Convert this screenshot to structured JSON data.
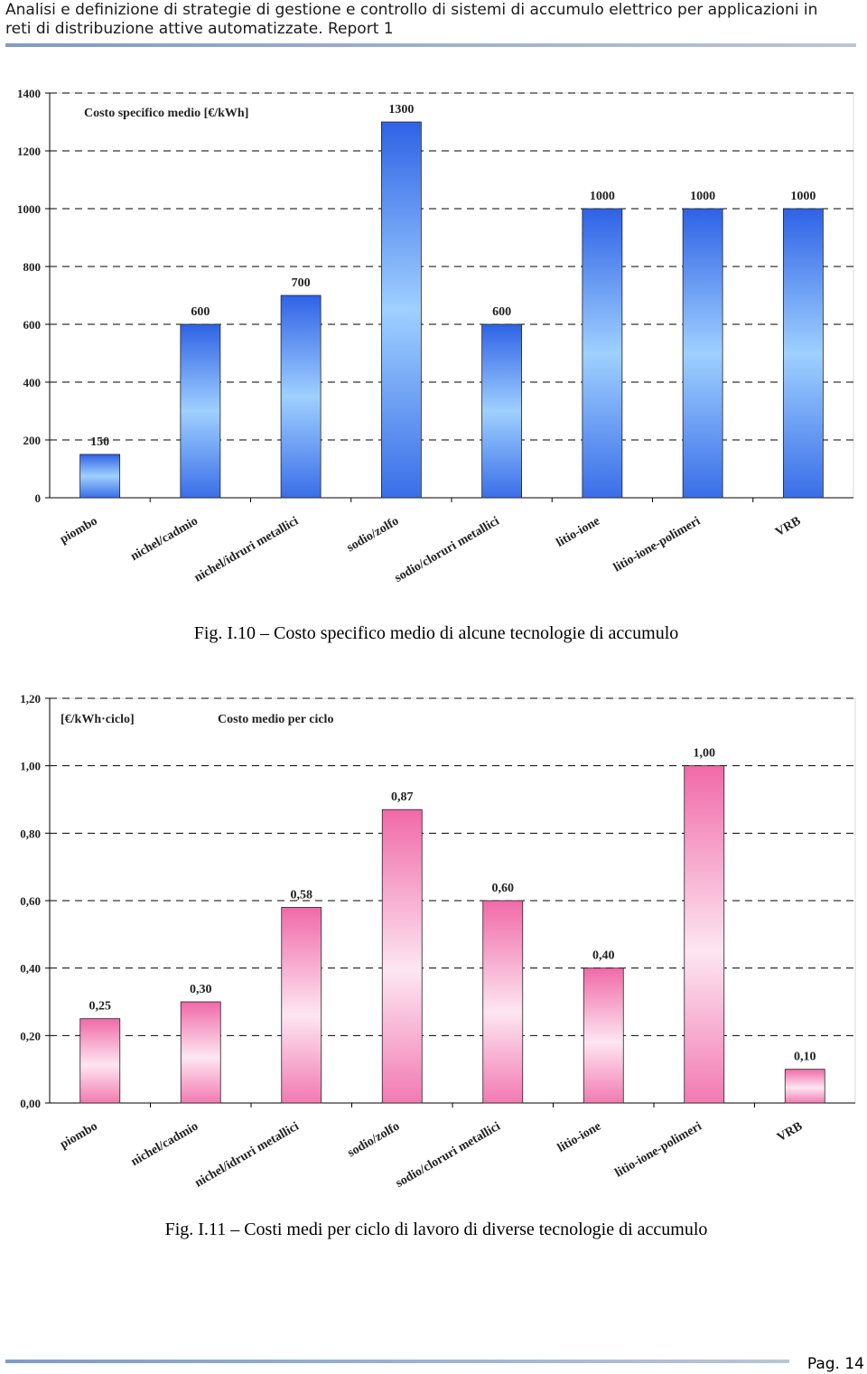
{
  "header": {
    "lines": [
      "Analisi e definizione di strategie di gestione e controllo di sistemi di accumulo elettrico per applicazioni in",
      "reti di distribuzione attive automatizzate. Report 1"
    ]
  },
  "chart_data": [
    {
      "type": "bar",
      "title": "Costo specifico medio [€/kWh]",
      "categories": [
        "piombo",
        "nichel/cadmio",
        "nichel/idruri metallici",
        "sodio/zolfo",
        "sodio/cloruri metallici",
        "litio-ione",
        "litio-ione-polimeri",
        "VRB"
      ],
      "values": [
        150,
        600,
        700,
        1300,
        600,
        1000,
        1000,
        1000
      ],
      "color": "blue",
      "ylim": [
        0,
        1400
      ],
      "yticks": [
        0,
        200,
        400,
        600,
        800,
        1000,
        1200,
        1400
      ],
      "grid": true,
      "caption": "Fig. I.10 – Costo specifico medio di alcune tecnologie di accumulo"
    },
    {
      "type": "bar",
      "y_label": "[€/kWh·ciclo]",
      "title": "Costo medio per ciclo",
      "categories": [
        "piombo",
        "nichel/cadmio",
        "nichel/idruri metallici",
        "sodio/zolfo",
        "sodio/cloruri metallici",
        "litio-ione",
        "litio-ione-polimeri",
        "VRB"
      ],
      "values": [
        0.25,
        0.3,
        0.58,
        0.87,
        0.6,
        0.4,
        1.0,
        0.1
      ],
      "value_labels": [
        "0,25",
        "0,30",
        "0,58",
        "0,87",
        "0,60",
        "0,40",
        "1,00",
        "0,10"
      ],
      "color": "pink",
      "ylim": [
        0,
        1.2
      ],
      "yticks": [
        {
          "value": 0,
          "label": "0,00"
        },
        {
          "value": 0.2,
          "label": "0,20"
        },
        {
          "value": 0.4,
          "label": "0,40"
        },
        {
          "value": 0.6,
          "label": "0,60"
        },
        {
          "value": 0.8,
          "label": "0,80"
        },
        {
          "value": 1.0,
          "label": "1,00"
        },
        {
          "value": 1.2,
          "label": "1,20"
        }
      ],
      "grid": true,
      "caption": "Fig. I.11 – Costi medi per ciclo di lavoro di diverse tecnologie di accumulo"
    }
  ],
  "footer": {
    "page": "Pag. 14"
  }
}
